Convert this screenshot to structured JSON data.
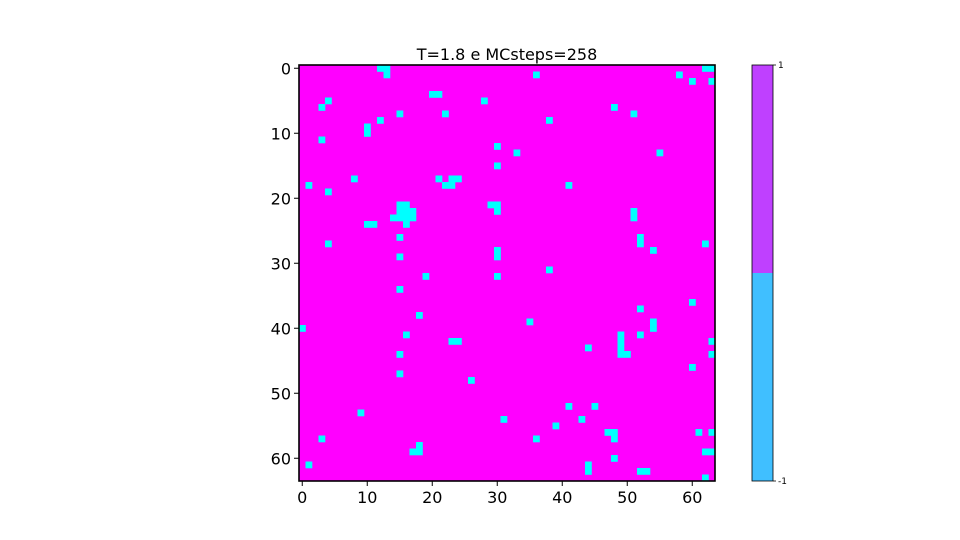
{
  "chart_data": {
    "type": "heatmap",
    "title": "T=1.8 e MCsteps=258",
    "grid_size": 64,
    "background_value": 1,
    "flipped_value": -1,
    "flipped_color": "#00ffff",
    "background_color": "#ff00ff",
    "x_ticks": [
      0,
      10,
      20,
      30,
      40,
      50,
      60
    ],
    "y_ticks": [
      0,
      10,
      20,
      30,
      40,
      50,
      60
    ],
    "flipped_cells": [
      [
        12,
        0
      ],
      [
        13,
        0
      ],
      [
        13,
        1
      ],
      [
        36,
        1
      ],
      [
        58,
        1
      ],
      [
        62,
        0
      ],
      [
        63,
        0
      ],
      [
        60,
        2
      ],
      [
        63,
        2
      ],
      [
        20,
        4
      ],
      [
        21,
        4
      ],
      [
        4,
        5
      ],
      [
        28,
        5
      ],
      [
        3,
        6
      ],
      [
        48,
        6
      ],
      [
        15,
        7
      ],
      [
        22,
        7
      ],
      [
        51,
        7
      ],
      [
        12,
        8
      ],
      [
        38,
        8
      ],
      [
        10,
        9
      ],
      [
        10,
        10
      ],
      [
        3,
        11
      ],
      [
        30,
        12
      ],
      [
        33,
        13
      ],
      [
        55,
        13
      ],
      [
        30,
        15
      ],
      [
        8,
        17
      ],
      [
        21,
        17
      ],
      [
        23,
        17
      ],
      [
        24,
        17
      ],
      [
        22,
        18
      ],
      [
        23,
        18
      ],
      [
        1,
        18
      ],
      [
        41,
        18
      ],
      [
        4,
        19
      ],
      [
        15,
        21
      ],
      [
        16,
        21
      ],
      [
        29,
        21
      ],
      [
        30,
        21
      ],
      [
        15,
        22
      ],
      [
        16,
        22
      ],
      [
        17,
        22
      ],
      [
        30,
        22
      ],
      [
        51,
        22
      ],
      [
        14,
        23
      ],
      [
        15,
        23
      ],
      [
        16,
        23
      ],
      [
        17,
        23
      ],
      [
        51,
        23
      ],
      [
        10,
        24
      ],
      [
        11,
        24
      ],
      [
        16,
        24
      ],
      [
        15,
        26
      ],
      [
        52,
        26
      ],
      [
        4,
        27
      ],
      [
        52,
        27
      ],
      [
        62,
        27
      ],
      [
        54,
        28
      ],
      [
        30,
        28
      ],
      [
        15,
        29
      ],
      [
        30,
        29
      ],
      [
        38,
        31
      ],
      [
        19,
        32
      ],
      [
        30,
        32
      ],
      [
        15,
        34
      ],
      [
        60,
        36
      ],
      [
        52,
        37
      ],
      [
        18,
        38
      ],
      [
        35,
        39
      ],
      [
        54,
        39
      ],
      [
        0,
        40
      ],
      [
        54,
        40
      ],
      [
        16,
        41
      ],
      [
        49,
        41
      ],
      [
        52,
        41
      ],
      [
        23,
        42
      ],
      [
        24,
        42
      ],
      [
        49,
        42
      ],
      [
        63,
        42
      ],
      [
        44,
        43
      ],
      [
        49,
        43
      ],
      [
        15,
        44
      ],
      [
        49,
        44
      ],
      [
        50,
        44
      ],
      [
        63,
        44
      ],
      [
        60,
        46
      ],
      [
        15,
        47
      ],
      [
        26,
        48
      ],
      [
        41,
        52
      ],
      [
        45,
        52
      ],
      [
        9,
        53
      ],
      [
        43,
        54
      ],
      [
        31,
        54
      ],
      [
        39,
        55
      ],
      [
        47,
        56
      ],
      [
        48,
        56
      ],
      [
        61,
        56
      ],
      [
        63,
        56
      ],
      [
        3,
        57
      ],
      [
        36,
        57
      ],
      [
        48,
        57
      ],
      [
        18,
        58
      ],
      [
        17,
        59
      ],
      [
        18,
        59
      ],
      [
        62,
        59
      ],
      [
        63,
        59
      ],
      [
        48,
        60
      ],
      [
        1,
        61
      ],
      [
        44,
        61
      ],
      [
        44,
        62
      ],
      [
        52,
        62
      ],
      [
        53,
        62
      ],
      [
        62,
        63
      ]
    ],
    "colorbar": {
      "ticks": [
        1,
        -1
      ],
      "tick_labels": [
        "1",
        "-1"
      ],
      "colors": [
        {
          "value": 1,
          "color": "#bf40ff"
        },
        {
          "value": -1,
          "color": "#40bfff"
        }
      ]
    }
  }
}
